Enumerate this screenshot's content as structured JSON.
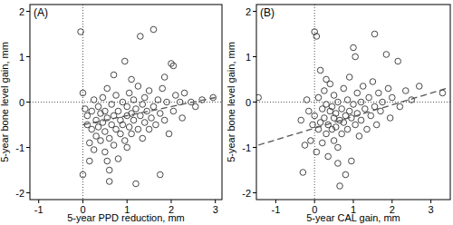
{
  "chart_data": [
    {
      "type": "scatter",
      "title": "(A)",
      "x_label": "5-year PPD reduction, mm",
      "y_label": "5-year bone level gain, mm",
      "xlim": [
        -1.2,
        3.15
      ],
      "ylim": [
        -2.15,
        2.15
      ],
      "xticks": [
        -1,
        0,
        1,
        2,
        3
      ],
      "yticks": [
        -2,
        -1,
        0,
        1,
        2
      ],
      "marker": "circle",
      "color": "#333333",
      "ref_x": 0,
      "ref_y": 0,
      "trend": {
        "x": [
          0,
          3
        ],
        "y": [
          -0.5,
          0.1
        ],
        "line_style": "dashed"
      },
      "x": [
        -0.05,
        0,
        0,
        0.1,
        0.1,
        0.15,
        0.2,
        0.2,
        0.25,
        0.25,
        0.3,
        0.3,
        0.35,
        0.35,
        0.4,
        0.4,
        0.45,
        0.45,
        0.5,
        0.5,
        0.5,
        0.55,
        0.55,
        0.6,
        0.6,
        0.6,
        0.65,
        0.65,
        0.7,
        0.7,
        0.75,
        0.75,
        0.8,
        0.8,
        0.85,
        0.85,
        0.9,
        0.9,
        0.95,
        0.95,
        1.0,
        1.0,
        1.0,
        1.05,
        1.05,
        1.1,
        1.1,
        1.15,
        1.15,
        1.2,
        1.2,
        1.25,
        1.25,
        1.3,
        1.3,
        1.35,
        1.35,
        1.4,
        1.4,
        1.45,
        1.5,
        1.5,
        1.55,
        1.6,
        1.6,
        1.65,
        1.7,
        1.75,
        1.75,
        1.8,
        1.85,
        1.9,
        1.95,
        2.0,
        2.05,
        2.05,
        2.1,
        2.2,
        2.25,
        2.3,
        2.45,
        2.55,
        2.7,
        2.95,
        0.05,
        0.15,
        0.55,
        1.85,
        0.7,
        1.1
      ],
      "y": [
        1.55,
        -1.6,
        0.2,
        -0.3,
        -0.5,
        -0.9,
        -0.2,
        -0.6,
        0.05,
        -1.05,
        -0.4,
        -0.75,
        -0.1,
        -0.55,
        -0.25,
        -0.85,
        0.1,
        -0.45,
        -0.65,
        -1.1,
        -0.2,
        -0.35,
        0.3,
        -1.5,
        -1.75,
        -0.8,
        -0.5,
        -0.05,
        -0.3,
        -0.95,
        -0.6,
        0.15,
        -0.2,
        -1.25,
        -0.4,
        -0.7,
        0.0,
        -0.5,
        0.9,
        -0.85,
        -0.3,
        -0.1,
        -1.0,
        0.2,
        -0.55,
        -0.25,
        -0.7,
        0.05,
        -0.4,
        -1.8,
        -0.15,
        -0.6,
        0.35,
        1.45,
        -0.3,
        -0.05,
        -0.8,
        -0.45,
        0.1,
        -0.2,
        -0.6,
        0.25,
        -0.35,
        1.6,
        -0.1,
        -0.5,
        0.05,
        -1.6,
        -0.25,
        0.3,
        -0.4,
        0.0,
        -0.7,
        0.85,
        0.8,
        -0.2,
        0.15,
        0.0,
        -0.35,
        0.2,
        0.0,
        -0.1,
        0.05,
        0.1,
        -0.15,
        -1.3,
        -1.3,
        0.55,
        0.6,
        0.5
      ]
    },
    {
      "type": "scatter",
      "title": "(B)",
      "x_label": "5-year CAL gain, mm",
      "y_label": "5-year bone level gain, mm",
      "xlim": [
        -1.5,
        3.5
      ],
      "ylim": [
        -2.15,
        2.15
      ],
      "xticks": [
        -1,
        0,
        1,
        2,
        3
      ],
      "yticks": [
        -2,
        -1,
        0,
        1,
        2
      ],
      "marker": "circle",
      "color": "#333333",
      "ref_x": 0,
      "ref_y": 0,
      "trend": {
        "x": [
          -1.45,
          3.4
        ],
        "y": [
          -0.95,
          0.3
        ],
        "line_style": "dashed"
      },
      "x": [
        -1.45,
        0,
        0.05,
        -0.3,
        -0.35,
        -0.1,
        -0.15,
        -0.2,
        -0.05,
        0.0,
        0.05,
        0.1,
        0.1,
        0.15,
        0.2,
        0.2,
        0.25,
        0.25,
        0.3,
        0.3,
        0.35,
        0.35,
        0.4,
        0.4,
        0.45,
        0.45,
        0.5,
        0.5,
        0.5,
        0.55,
        0.55,
        0.6,
        0.6,
        0.65,
        0.65,
        0.7,
        0.7,
        0.75,
        0.75,
        0.8,
        0.8,
        0.85,
        0.85,
        0.9,
        0.9,
        0.95,
        0.95,
        1.0,
        1.0,
        1.05,
        1.05,
        1.1,
        1.1,
        1.15,
        1.2,
        1.2,
        1.25,
        1.3,
        1.35,
        1.4,
        1.45,
        1.5,
        1.55,
        1.55,
        1.6,
        1.65,
        1.7,
        1.75,
        1.85,
        1.9,
        1.95,
        2.0,
        2.15,
        2.2,
        2.35,
        2.5,
        2.7,
        3.3,
        0.15,
        -0.25,
        0.3,
        0.6
      ],
      "y": [
        0.1,
        1.55,
        1.45,
        -1.55,
        -0.4,
        -0.85,
        -0.2,
        0.05,
        -0.5,
        -0.3,
        -1.1,
        -0.6,
        0.1,
        -0.45,
        -0.15,
        -0.9,
        -0.35,
        0.25,
        -0.7,
        -0.05,
        -0.5,
        -1.2,
        -0.2,
        0.4,
        -0.6,
        -0.1,
        -0.35,
        -0.85,
        0.15,
        -0.55,
        -0.25,
        0.0,
        -1.0,
        -1.85,
        -0.4,
        -0.15,
        -0.7,
        0.3,
        -0.45,
        -1.6,
        -0.3,
        0.05,
        -0.6,
        -0.2,
        0.55,
        -1.3,
        -0.35,
        1.2,
        -0.05,
        1.0,
        -0.5,
        -0.25,
        0.2,
        -0.75,
        0.0,
        -0.4,
        0.35,
        -0.15,
        -0.6,
        0.1,
        -0.3,
        0.45,
        1.5,
        -0.1,
        -0.5,
        0.2,
        -0.2,
        0.0,
        1.05,
        0.3,
        -0.35,
        0.1,
        0.9,
        -0.1,
        0.25,
        0.05,
        0.35,
        0.2,
        0.7,
        -0.95,
        0.5,
        -1.35
      ]
    }
  ]
}
